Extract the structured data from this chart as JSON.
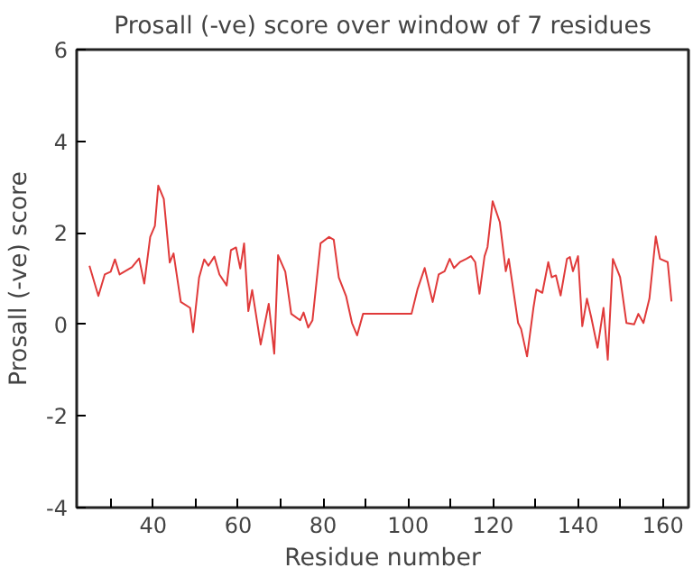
{
  "chart_data": {
    "type": "line",
    "title": "Prosall (-ve) score over window of 7 residues",
    "xlabel": "Residue number",
    "ylabel": "Prosall (-ve) score",
    "x": [
      25,
      27.1,
      28.6,
      30,
      31,
      32.1,
      35,
      36.7,
      37.9,
      39.3,
      40.4,
      41.2,
      42.5,
      43.9,
      44.8,
      46.5,
      48.7,
      49.4,
      50.8,
      52,
      53,
      54.4,
      55.6,
      57.3,
      58.3,
      59.5,
      60.5,
      61.4,
      62.4,
      63.3,
      65.3,
      67.2,
      68.5,
      69.4,
      71.1,
      72.5,
      74.6,
      75.4,
      76.5,
      77.5,
      79.4,
      81.4,
      82.5,
      83.7,
      85.4,
      86.8,
      88,
      89.4,
      100.8,
      102.2,
      103.9,
      105.8,
      107.2,
      108.6,
      109.8,
      110.8,
      112.2,
      113.7,
      114.8,
      115.8,
      116.8,
      118,
      118.7,
      119.9,
      121.6,
      123,
      123.7,
      125.9,
      126.6,
      128,
      129.5,
      130.2,
      131.6,
      133,
      133.8,
      134.8,
      135.9,
      137.4,
      138.1,
      138.8,
      140,
      141,
      142.1,
      143.1,
      144.6,
      146,
      147,
      148.2,
      149.9,
      151.4,
      153.2,
      154.2,
      155.4,
      156.8,
      158.3,
      159.3,
      161.1,
      162
    ],
    "series": [
      {
        "color": "#e03a3a",
        "values": [
          1.28,
          0.62,
          1.09,
          1.15,
          1.42,
          1.09,
          1.25,
          1.44,
          0.89,
          1.91,
          2.15,
          3.03,
          2.74,
          1.35,
          1.55,
          0.49,
          0.36,
          -0.17,
          1.02,
          1.42,
          1.28,
          1.48,
          1.09,
          0.85,
          1.62,
          1.68,
          1.22,
          1.77,
          0.29,
          0.75,
          -0.44,
          0.45,
          -0.64,
          1.51,
          1.15,
          0.23,
          0.09,
          0.26,
          -0.07,
          0.09,
          1.77,
          1.91,
          1.85,
          1.02,
          0.62,
          0.03,
          -0.24,
          0.23,
          0.23,
          0.76,
          1.23,
          0.49,
          1.09,
          1.16,
          1.43,
          1.23,
          1.36,
          1.43,
          1.49,
          1.36,
          0.67,
          1.49,
          1.69,
          2.69,
          2.23,
          1.16,
          1.43,
          0.03,
          -0.1,
          -0.7,
          0.36,
          0.76,
          0.69,
          1.36,
          1.03,
          1.07,
          0.63,
          1.43,
          1.47,
          1.16,
          1.49,
          -0.04,
          0.56,
          0.16,
          -0.51,
          0.36,
          -0.77,
          1.43,
          1.03,
          0.03,
          0.0,
          0.23,
          0.03,
          0.56,
          1.92,
          1.43,
          1.36,
          0.5
        ]
      }
    ],
    "xlim": [
      22,
      166
    ],
    "ylim": [
      -4,
      6
    ],
    "xticks": [
      {
        "value": 30,
        "label": null
      },
      40,
      {
        "value": 50,
        "label": null
      },
      60,
      {
        "value": 70,
        "label": null
      },
      80,
      {
        "value": 90,
        "label": null
      },
      100,
      {
        "value": 110,
        "label": null
      },
      120,
      {
        "value": 130,
        "label": null
      },
      140,
      {
        "value": 150,
        "label": null
      },
      160
    ],
    "yticks": [
      -4,
      -2,
      0,
      2,
      4,
      6
    ],
    "grid": false,
    "marker": "none",
    "line_style": "solid"
  }
}
